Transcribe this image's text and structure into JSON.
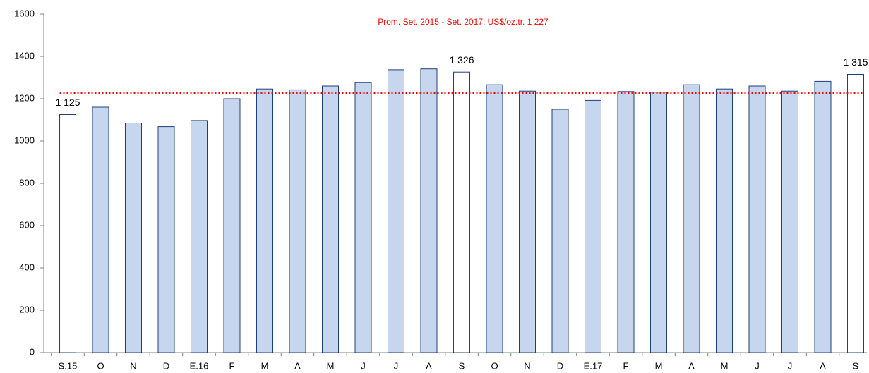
{
  "chart_data": {
    "type": "bar",
    "categories": [
      "S.15",
      "O",
      "N",
      "D",
      "E.16",
      "F",
      "M",
      "A",
      "M",
      "J",
      "J",
      "A",
      "S",
      "O",
      "N",
      "D",
      "E.17",
      "F",
      "M",
      "A",
      "M",
      "J",
      "J",
      "A",
      "S"
    ],
    "values": [
      1125,
      1160,
      1085,
      1068,
      1097,
      1200,
      1246,
      1242,
      1260,
      1276,
      1337,
      1341,
      1326,
      1266,
      1236,
      1150,
      1192,
      1234,
      1231,
      1266,
      1246,
      1260,
      1236,
      1282,
      1315
    ],
    "value_labels": [
      "1 125",
      null,
      null,
      null,
      null,
      null,
      null,
      null,
      null,
      null,
      null,
      null,
      "1 326",
      null,
      null,
      null,
      null,
      null,
      null,
      null,
      null,
      null,
      null,
      null,
      "1 315"
    ],
    "colors": [
      "#ffffff",
      "#c5d6ee",
      "#c5d6ee",
      "#c5d6ee",
      "#c5d6ee",
      "#c5d6ee",
      "#c5d6ee",
      "#c5d6ee",
      "#c5d6ee",
      "#c5d6ee",
      "#c5d6ee",
      "#c5d6ee",
      "#ffffff",
      "#c5d6ee",
      "#c5d6ee",
      "#c5d6ee",
      "#c5d6ee",
      "#c5d6ee",
      "#c5d6ee",
      "#c5d6ee",
      "#c5d6ee",
      "#c5d6ee",
      "#c5d6ee",
      "#c5d6ee",
      "#ffffff"
    ],
    "edge_color": "#1f3f7a",
    "reference_line": {
      "value": 1227,
      "label": "Prom. Set. 2015 - Set. 2017: US$/oz.tr. 1 227",
      "color": "#ff0000"
    },
    "ylim": [
      0,
      1600
    ],
    "yticks": [
      0,
      200,
      400,
      600,
      800,
      1000,
      1200,
      1400,
      1600
    ],
    "grid": false
  }
}
